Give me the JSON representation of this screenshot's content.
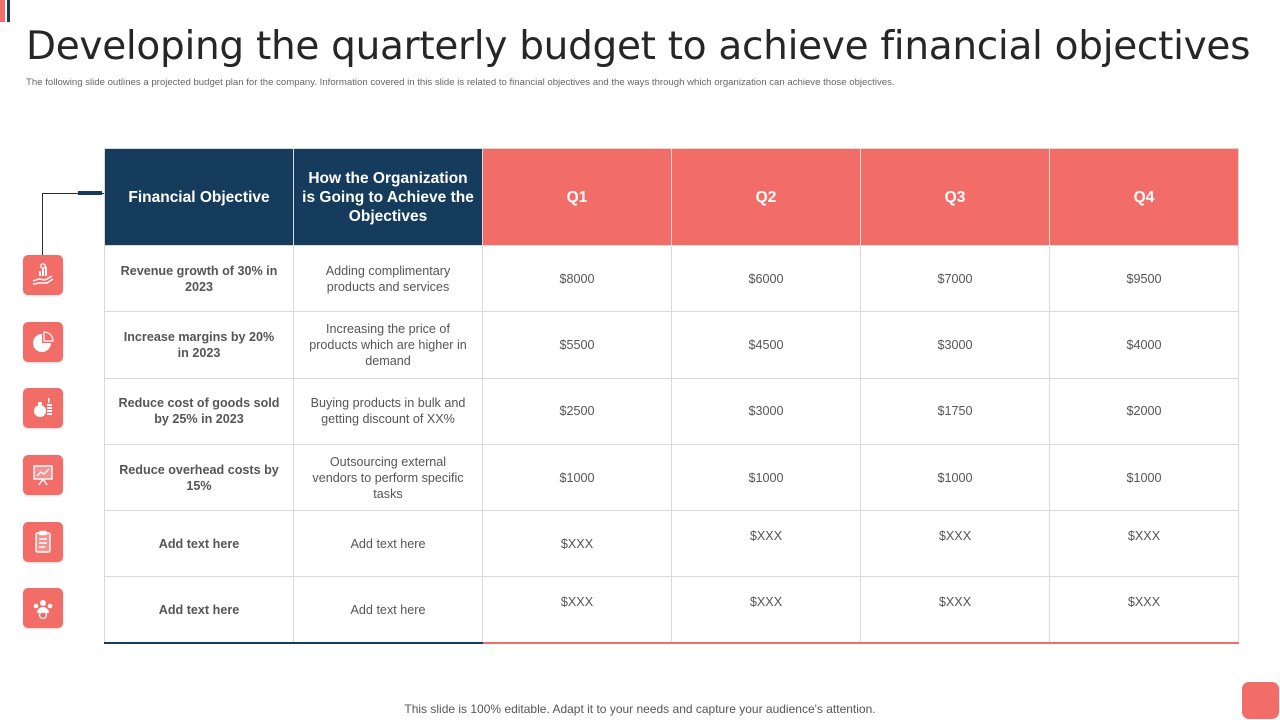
{
  "slide": {
    "title": "Developing the quarterly budget to achieve financial objectives",
    "subtitle": "The following slide outlines a projected budget plan  for the company. Information covered in this slide is related to financial objectives and the ways through which organization can achieve those objectives.",
    "footer": "This slide is 100% editable. Adapt it to your needs and capture your audience's attention."
  },
  "colors": {
    "navy": "#153c5c",
    "coral": "#f26d68"
  },
  "icons": [
    "revenue-growth-hand-icon",
    "pie-chart-icon",
    "money-bag-coins-icon",
    "presentation-board-icon",
    "clipboard-checklist-icon",
    "team-target-icon"
  ],
  "table": {
    "headers": [
      "Financial Objective",
      "How the Organization is Going to Achieve the Objectives",
      "Q1",
      "Q2",
      "Q3",
      "Q4"
    ],
    "rows": [
      {
        "objective": "Revenue growth of 30% in 2023",
        "approach": "Adding complimentary products and services",
        "q1": "$8000",
        "q2": "$6000",
        "q3": "$7000",
        "q4": "$9500"
      },
      {
        "objective": "Increase margins by 20% in 2023",
        "approach": "Increasing the price of products which are higher in demand",
        "q1": "$5500",
        "q2": "$4500",
        "q3": "$3000",
        "q4": "$4000"
      },
      {
        "objective": "Reduce cost  of goods sold by 25%  in 2023",
        "approach": "Buying products in bulk and getting discount of XX%",
        "q1": "$2500",
        "q2": "$3000",
        "q3": "$1750",
        "q4": "$2000"
      },
      {
        "objective": "Reduce overhead costs by 15%",
        "approach": "Outsourcing external vendors  to perform specific tasks",
        "q1": "$1000",
        "q2": "$1000",
        "q3": "$1000",
        "q4": "$1000"
      },
      {
        "objective": "Add text here",
        "approach": "Add text here",
        "q1": "$XXX",
        "q2": "$XXX",
        "q3": "$XXX",
        "q4": "$XXX"
      },
      {
        "objective": "Add text here",
        "approach": "Add text here",
        "q1": "$XXX",
        "q2": "$XXX",
        "q3": "$XXX",
        "q4": "$XXX"
      }
    ]
  }
}
